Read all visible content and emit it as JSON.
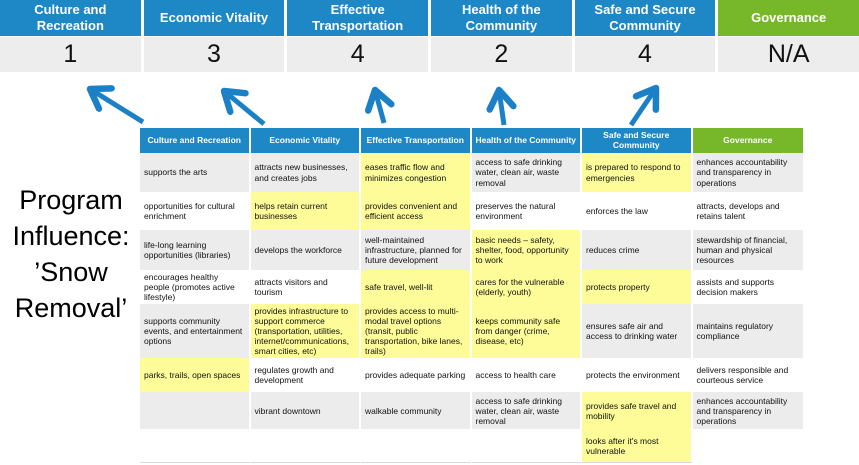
{
  "program_label": {
    "lines": [
      "Program",
      "Influence:",
      "’Snow",
      "Removal’"
    ]
  },
  "scoreboard": {
    "items": [
      {
        "label": "Culture and Recreation",
        "score": "1",
        "accent": "blue"
      },
      {
        "label": "Economic Vitality",
        "score": "3",
        "accent": "blue"
      },
      {
        "label": "Effective Transportation",
        "score": "4",
        "accent": "blue"
      },
      {
        "label": "Health of the Community",
        "score": "2",
        "accent": "blue"
      },
      {
        "label": "Safe and Secure Community",
        "score": "4",
        "accent": "blue"
      },
      {
        "label": "Governance",
        "score": "N/A",
        "accent": "green"
      }
    ]
  },
  "arrows": {
    "icon": "up-arrow-icon",
    "count": 5,
    "color": "#1b80c5"
  },
  "matrix": {
    "columns": [
      {
        "header": "Culture and Recreation",
        "accent": "blue",
        "cells": [
          {
            "text": "supports the arts",
            "highlighted": false
          },
          {
            "text": "opportunities for cultural enrichment",
            "highlighted": false
          },
          {
            "text": "life-long learning opportunities (libraries)",
            "highlighted": false
          },
          {
            "text": "encourages healthy people (promotes active lifestyle)",
            "highlighted": false
          },
          {
            "text": "supports community events, and entertainment options",
            "highlighted": false
          },
          {
            "text": "parks, trails, open spaces",
            "highlighted": true
          },
          {
            "text": "",
            "highlighted": false
          },
          {
            "text": "",
            "highlighted": false
          }
        ]
      },
      {
        "header": "Economic Vitality",
        "accent": "blue",
        "cells": [
          {
            "text": "attracts new businesses, and creates jobs",
            "highlighted": false
          },
          {
            "text": "helps retain current businesses",
            "highlighted": true
          },
          {
            "text": "develops the workforce",
            "highlighted": false
          },
          {
            "text": "attracts visitors and tourism",
            "highlighted": false
          },
          {
            "text": "provides infrastructure to support commerce (transportation, utilities, internet/communications, smart cities, etc)",
            "highlighted": true
          },
          {
            "text": "regulates growth and development",
            "highlighted": false
          },
          {
            "text": "vibrant downtown",
            "highlighted": false
          },
          {
            "text": "",
            "highlighted": false
          }
        ]
      },
      {
        "header": "Effective Transportation",
        "accent": "blue",
        "cells": [
          {
            "text": "eases traffic flow and minimizes congestion",
            "highlighted": true
          },
          {
            "text": "provides convenient and efficient access",
            "highlighted": true
          },
          {
            "text": "well-maintained infrastructure, planned for future development",
            "highlighted": false
          },
          {
            "text": "safe travel, well-lit",
            "highlighted": true
          },
          {
            "text": "provides access to multi-modal travel options (transit, public transportation, bike lanes, trails)",
            "highlighted": true
          },
          {
            "text": "provides adequate parking",
            "highlighted": false
          },
          {
            "text": "walkable community",
            "highlighted": false
          },
          {
            "text": "",
            "highlighted": false
          }
        ]
      },
      {
        "header": "Health of the Community",
        "accent": "blue",
        "cells": [
          {
            "text": "access to safe drinking water, clean air, waste removal",
            "highlighted": false
          },
          {
            "text": "preserves the natural environment",
            "highlighted": false
          },
          {
            "text": "basic needs – safety, shelter, food, opportunity to work",
            "highlighted": true
          },
          {
            "text": "cares for the vulnerable (elderly, youth)",
            "highlighted": true
          },
          {
            "text": "keeps community safe from danger (crime, disease, etc)",
            "highlighted": true
          },
          {
            "text": "access to health care",
            "highlighted": false
          },
          {
            "text": "access to safe drinking water, clean air, waste removal",
            "highlighted": false
          },
          {
            "text": "",
            "highlighted": false
          }
        ]
      },
      {
        "header": "Safe and Secure Community",
        "accent": "blue",
        "cells": [
          {
            "text": "is prepared to respond to emergencies",
            "highlighted": true
          },
          {
            "text": "enforces the law",
            "highlighted": false
          },
          {
            "text": "reduces crime",
            "highlighted": false
          },
          {
            "text": "protects property",
            "highlighted": true
          },
          {
            "text": "ensures safe air and access to drinking water",
            "highlighted": false
          },
          {
            "text": "protects the environment",
            "highlighted": false
          },
          {
            "text": "provides safe travel and mobility",
            "highlighted": true
          },
          {
            "text": "looks after it's most vulnerable",
            "highlighted": true
          }
        ]
      },
      {
        "header": "Governance",
        "accent": "green",
        "cells": [
          {
            "text": "enhances accountability and transparency in operations",
            "highlighted": false
          },
          {
            "text": "attracts, develops and retains talent",
            "highlighted": false
          },
          {
            "text": "stewardship of financial, human and physical resources",
            "highlighted": false
          },
          {
            "text": "assists and supports decision makers",
            "highlighted": false
          },
          {
            "text": "maintains regulatory compliance",
            "highlighted": false
          },
          {
            "text": "delivers responsible and courteous service",
            "highlighted": false
          },
          {
            "text": "enhances accountability and transparency in operations",
            "highlighted": false
          },
          {
            "text": "",
            "highlighted": false
          }
        ]
      }
    ]
  },
  "colors": {
    "accent_blue": "#1e87c6",
    "accent_green": "#76b82a",
    "highlight_yellow": "#fdfc99",
    "stripe_gray": "#ececec",
    "score_bg": "#ededed",
    "arrow_blue": "#1b80c5"
  }
}
